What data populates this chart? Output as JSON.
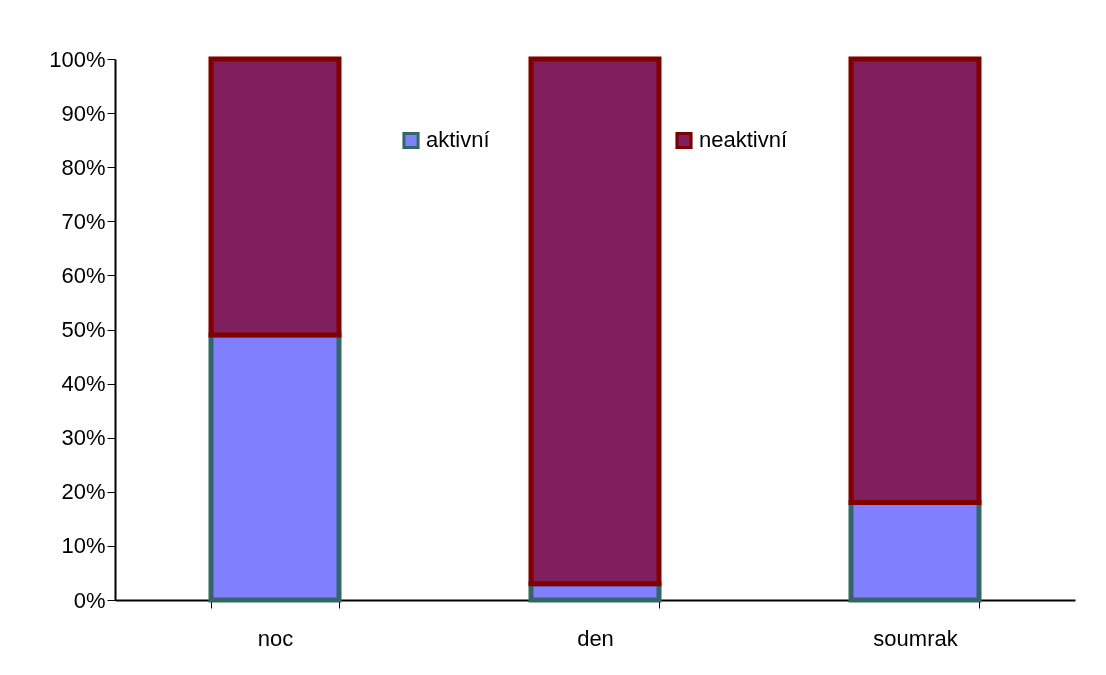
{
  "chart_data": {
    "type": "bar",
    "stacked": true,
    "categories": [
      "noc",
      "den",
      "soumrak"
    ],
    "series": [
      {
        "name": "aktivní",
        "color": "#8080ff",
        "values": [
          49,
          3,
          18
        ]
      },
      {
        "name": "neaktivní",
        "color": "#801f5e",
        "values": [
          51,
          97,
          82
        ]
      }
    ],
    "ylim": [
      0,
      100
    ],
    "yticks": [
      {
        "value": 0,
        "label": "0%"
      },
      {
        "value": 10,
        "label": "10%"
      },
      {
        "value": 20,
        "label": "20%"
      },
      {
        "value": 30,
        "label": "30%"
      },
      {
        "value": 40,
        "label": "40%"
      },
      {
        "value": 50,
        "label": "50%"
      },
      {
        "value": 60,
        "label": "60%"
      },
      {
        "value": 70,
        "label": "70%"
      },
      {
        "value": 80,
        "label": "80%"
      },
      {
        "value": 90,
        "label": "90%"
      },
      {
        "value": 100,
        "label": "100%"
      }
    ],
    "grid": false,
    "legend": "top"
  }
}
